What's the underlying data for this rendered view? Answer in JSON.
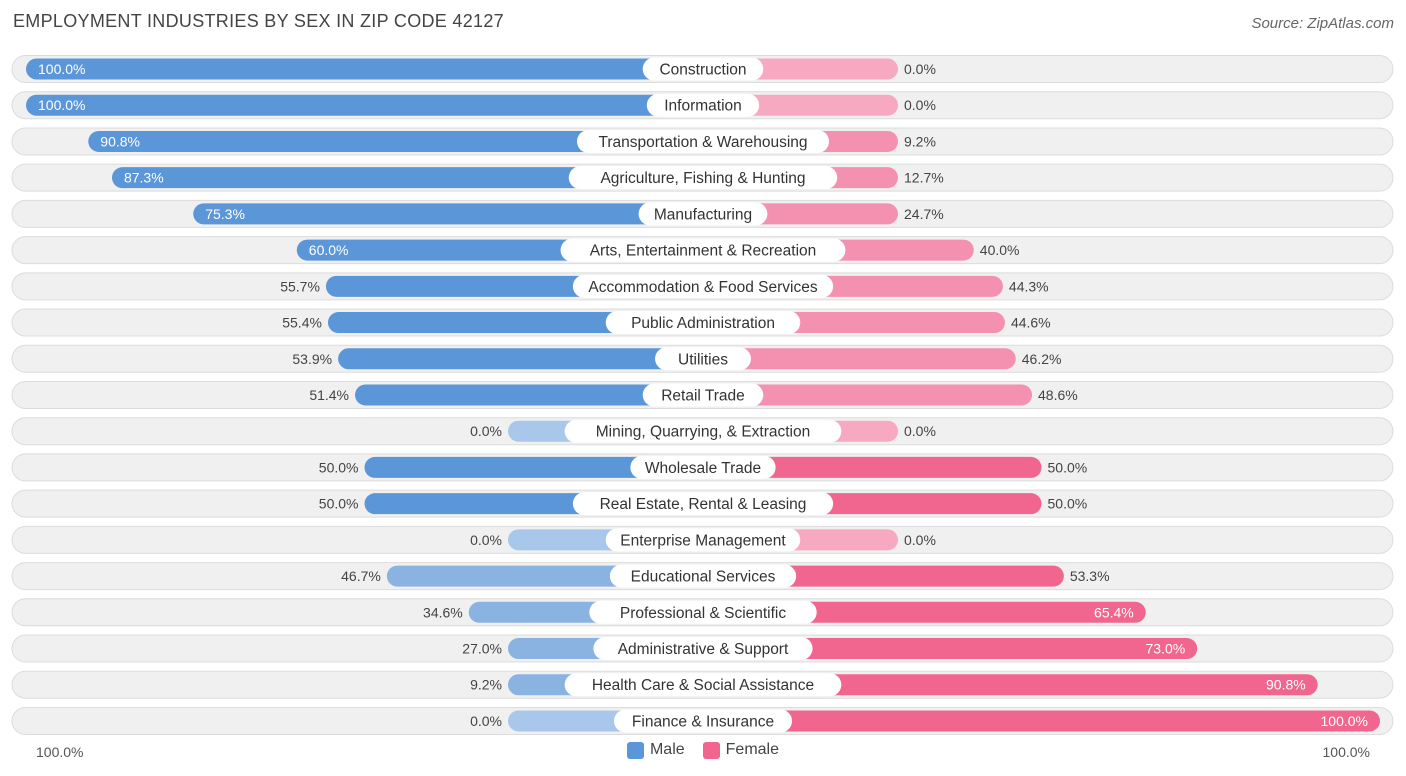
{
  "header": {
    "title": "EMPLOYMENT INDUSTRIES BY SEX IN ZIP CODE 42127",
    "source": "Source: ZipAtlas.com"
  },
  "axis": {
    "left_label": "100.0%",
    "right_label": "100.0%"
  },
  "legend": {
    "male_label": "Male",
    "female_label": "Female"
  },
  "colors": {
    "male_strong": "#5b97d8",
    "male_light": "#a9c7ea",
    "female_strong": "#f0668f",
    "female_light": "#f6a9c1",
    "row_background": "#f0f0f0",
    "row_border": "#dcdcdc"
  },
  "chart_data": {
    "type": "bar",
    "orientation": "horizontal-diverging",
    "title": "EMPLOYMENT INDUSTRIES BY SEX IN ZIP CODE 42127",
    "xlim": [
      -100,
      100
    ],
    "categories": [
      "Construction",
      "Information",
      "Transportation & Warehousing",
      "Agriculture, Fishing & Hunting",
      "Manufacturing",
      "Arts, Entertainment & Recreation",
      "Accommodation & Food Services",
      "Public Administration",
      "Utilities",
      "Retail Trade",
      "Mining, Quarrying, & Extraction",
      "Wholesale Trade",
      "Real Estate, Rental & Leasing",
      "Enterprise Management",
      "Educational Services",
      "Professional & Scientific",
      "Administrative & Support",
      "Health Care & Social Assistance",
      "Finance & Insurance"
    ],
    "series": [
      {
        "name": "Male",
        "values": [
          100.0,
          100.0,
          90.8,
          87.3,
          75.3,
          60.0,
          55.7,
          55.4,
          53.9,
          51.4,
          0.0,
          50.0,
          50.0,
          0.0,
          46.7,
          34.6,
          27.0,
          9.2,
          0.0
        ],
        "labels": [
          "100.0%",
          "100.0%",
          "90.8%",
          "87.3%",
          "75.3%",
          "60.0%",
          "55.7%",
          "55.4%",
          "53.9%",
          "51.4%",
          "0.0%",
          "50.0%",
          "50.0%",
          "0.0%",
          "46.7%",
          "34.6%",
          "27.0%",
          "9.2%",
          "0.0%"
        ]
      },
      {
        "name": "Female",
        "values": [
          0.0,
          0.0,
          9.2,
          12.7,
          24.7,
          40.0,
          44.3,
          44.6,
          46.2,
          48.6,
          0.0,
          50.0,
          50.0,
          0.0,
          53.3,
          65.4,
          73.0,
          90.8,
          100.0
        ],
        "labels": [
          "0.0%",
          "0.0%",
          "9.2%",
          "12.7%",
          "24.7%",
          "40.0%",
          "44.3%",
          "44.6%",
          "46.2%",
          "48.6%",
          "0.0%",
          "50.0%",
          "50.0%",
          "0.0%",
          "53.3%",
          "65.4%",
          "73.0%",
          "90.8%",
          "100.0%"
        ]
      }
    ]
  }
}
